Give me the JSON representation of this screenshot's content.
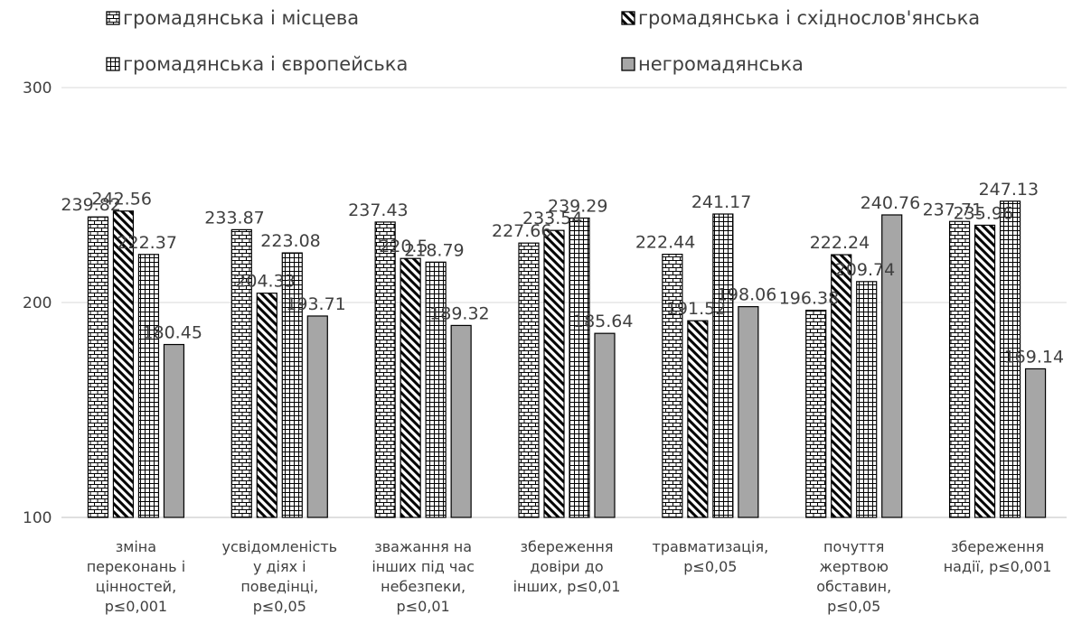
{
  "chart_data": {
    "type": "bar",
    "title": "",
    "xlabel": "",
    "ylabel": "",
    "ylim": [
      100,
      300
    ],
    "yticks": [
      100,
      200,
      300
    ],
    "grid": true,
    "legend_position": "top",
    "categories": [
      [
        "зміна",
        "переконань і",
        "цінностей,",
        "p≤0,001"
      ],
      [
        "усвідомленість",
        "у діях і",
        "поведінці,",
        "p≤0,05"
      ],
      [
        "зважання на",
        "інших під час",
        "небезпеки,",
        "p≤0,01"
      ],
      [
        "збереження",
        "довіри до",
        "інших, p≤0,01"
      ],
      [
        "травматизація,",
        "p≤0,05"
      ],
      [
        "почуття",
        "жертвою",
        "обставин,",
        "p≤0,05"
      ],
      [
        "збереження",
        "надії, p≤0,001"
      ]
    ],
    "series": [
      {
        "name": "громадянська і місцева",
        "pattern": "brick",
        "values": [
          239.82,
          233.87,
          237.43,
          227.66,
          222.44,
          196.38,
          237.71
        ],
        "labels": [
          "239.82",
          "233.87",
          "237.43",
          "227.66",
          "222.44",
          "196.38",
          "237.71"
        ]
      },
      {
        "name": "громадянська і східнослов'янська",
        "pattern": "diagonal",
        "values": [
          242.56,
          204.33,
          220.5,
          233.54,
          191.52,
          222.24,
          235.96
        ],
        "labels": [
          "242.56",
          "204.33",
          "220.5",
          "233.54",
          "191.52",
          "222.24",
          "235.96"
        ]
      },
      {
        "name": "громадянська і європейська",
        "pattern": "grid",
        "values": [
          222.37,
          223.08,
          218.79,
          239.29,
          241.17,
          209.74,
          247.13
        ],
        "labels": [
          "222.37",
          "223.08",
          "218.79",
          "239.29",
          "241.17",
          "209.74",
          "247.13"
        ]
      },
      {
        "name": "негромадянська",
        "pattern": "solid",
        "values": [
          180.45,
          193.71,
          189.32,
          185.64,
          198.06,
          240.76,
          169.14
        ],
        "labels": [
          "180.45",
          "193.71",
          "189.32",
          "185.64",
          "198.06",
          "240.76",
          "169.14"
        ]
      }
    ],
    "colors": {
      "solid_fill": "#a6a6a6",
      "outline": "#000000",
      "gridline": "#d9d9d9",
      "text": "#404040"
    }
  }
}
